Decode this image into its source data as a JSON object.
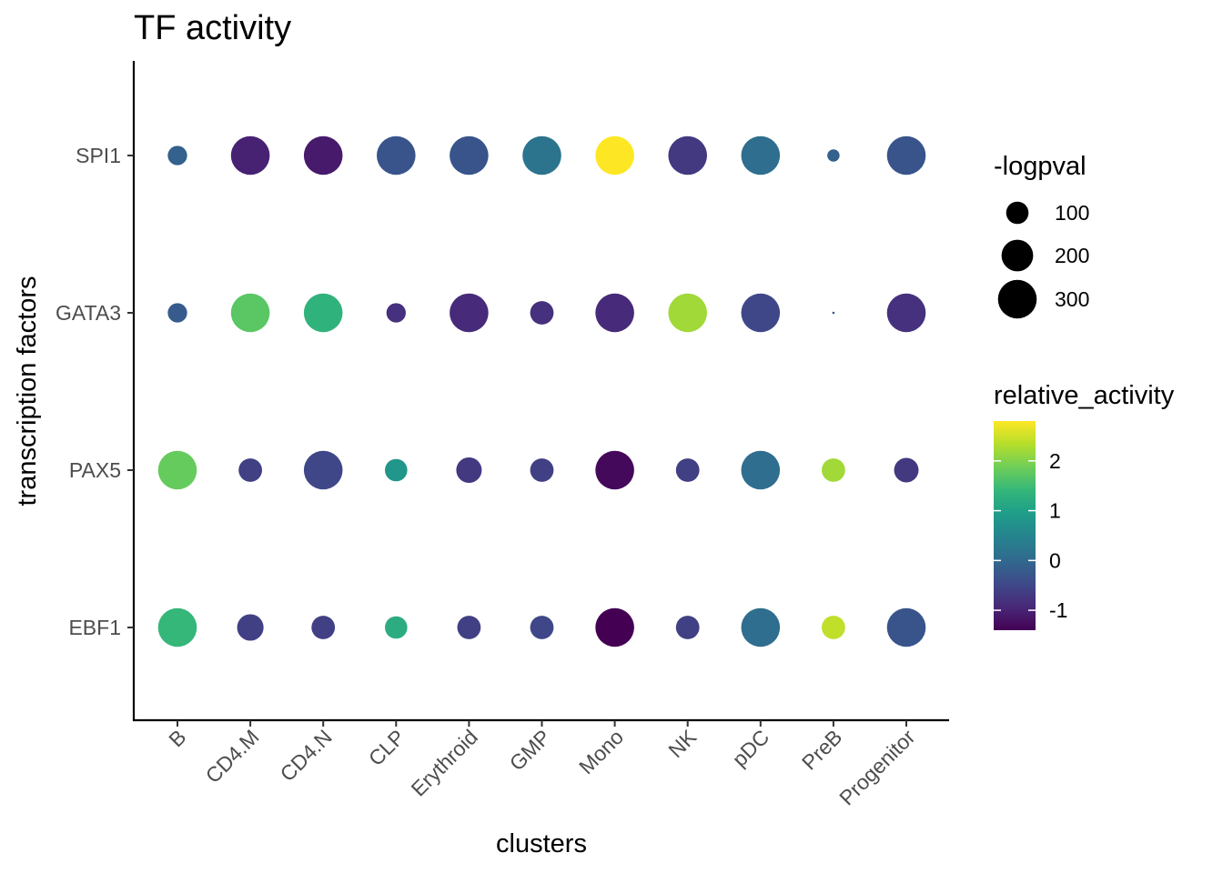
{
  "chart_data": {
    "type": "scatter",
    "title": "TF activity",
    "xlabel": "clusters",
    "ylabel": "transcription factors",
    "categories": [
      "B",
      "CD4.M",
      "CD4.N",
      "CLP",
      "Erythroid",
      "GMP",
      "Mono",
      "NK",
      "pDC",
      "PreB",
      "Progenitor"
    ],
    "factors": [
      "SPI1",
      "GATA3",
      "PAX5",
      "EBF1"
    ],
    "color_encoding": "relative_activity",
    "size_encoding": "-logpval",
    "colorbar_ticks": [
      2,
      1,
      0,
      -1
    ],
    "colorbar_tick_labels": [
      "2",
      "1",
      "0",
      "-1"
    ],
    "color_range": [
      -1.4,
      2.8
    ],
    "size_legend_values": [
      100,
      200,
      300
    ],
    "size_legend_labels": [
      "100",
      "200",
      "300"
    ],
    "grid": false,
    "legend_position": "right",
    "points": [
      {
        "factor": "SPI1",
        "cluster": "B",
        "logpval": 75,
        "relative_activity": -0.1
      },
      {
        "factor": "SPI1",
        "cluster": "CD4.M",
        "logpval": 300,
        "relative_activity": -1.0
      },
      {
        "factor": "SPI1",
        "cluster": "CD4.N",
        "logpval": 300,
        "relative_activity": -1.1
      },
      {
        "factor": "SPI1",
        "cluster": "CLP",
        "logpval": 300,
        "relative_activity": -0.3
      },
      {
        "factor": "SPI1",
        "cluster": "Erythroid",
        "logpval": 300,
        "relative_activity": -0.3
      },
      {
        "factor": "SPI1",
        "cluster": "GMP",
        "logpval": 300,
        "relative_activity": 0.2
      },
      {
        "factor": "SPI1",
        "cluster": "Mono",
        "logpval": 300,
        "relative_activity": 2.8
      },
      {
        "factor": "SPI1",
        "cluster": "NK",
        "logpval": 300,
        "relative_activity": -0.7
      },
      {
        "factor": "SPI1",
        "cluster": "pDC",
        "logpval": 300,
        "relative_activity": 0.1
      },
      {
        "factor": "SPI1",
        "cluster": "PreB",
        "logpval": 30,
        "relative_activity": -0.1
      },
      {
        "factor": "SPI1",
        "cluster": "Progenitor",
        "logpval": 300,
        "relative_activity": -0.3
      },
      {
        "factor": "GATA3",
        "cluster": "B",
        "logpval": 75,
        "relative_activity": -0.2
      },
      {
        "factor": "GATA3",
        "cluster": "CD4.M",
        "logpval": 300,
        "relative_activity": 1.7
      },
      {
        "factor": "GATA3",
        "cluster": "CD4.N",
        "logpval": 300,
        "relative_activity": 1.3
      },
      {
        "factor": "GATA3",
        "cluster": "CLP",
        "logpval": 75,
        "relative_activity": -0.8
      },
      {
        "factor": "GATA3",
        "cluster": "Erythroid",
        "logpval": 300,
        "relative_activity": -0.9
      },
      {
        "factor": "GATA3",
        "cluster": "GMP",
        "logpval": 110,
        "relative_activity": -0.8
      },
      {
        "factor": "GATA3",
        "cluster": "Mono",
        "logpval": 300,
        "relative_activity": -0.9
      },
      {
        "factor": "GATA3",
        "cluster": "NK",
        "logpval": 300,
        "relative_activity": 2.2
      },
      {
        "factor": "GATA3",
        "cluster": "pDC",
        "logpval": 300,
        "relative_activity": -0.5
      },
      {
        "factor": "GATA3",
        "cluster": "PreB",
        "logpval": 1,
        "relative_activity": -0.3
      },
      {
        "factor": "GATA3",
        "cluster": "Progenitor",
        "logpval": 300,
        "relative_activity": -0.8
      },
      {
        "factor": "PAX5",
        "cluster": "B",
        "logpval": 300,
        "relative_activity": 1.8
      },
      {
        "factor": "PAX5",
        "cluster": "CD4.M",
        "logpval": 110,
        "relative_activity": -0.6
      },
      {
        "factor": "PAX5",
        "cluster": "CD4.N",
        "logpval": 300,
        "relative_activity": -0.5
      },
      {
        "factor": "PAX5",
        "cluster": "CLP",
        "logpval": 100,
        "relative_activity": 0.8
      },
      {
        "factor": "PAX5",
        "cluster": "Erythroid",
        "logpval": 130,
        "relative_activity": -0.7
      },
      {
        "factor": "PAX5",
        "cluster": "GMP",
        "logpval": 110,
        "relative_activity": -0.6
      },
      {
        "factor": "PAX5",
        "cluster": "Mono",
        "logpval": 300,
        "relative_activity": -1.3
      },
      {
        "factor": "PAX5",
        "cluster": "NK",
        "logpval": 110,
        "relative_activity": -0.6
      },
      {
        "factor": "PAX5",
        "cluster": "pDC",
        "logpval": 300,
        "relative_activity": 0.1
      },
      {
        "factor": "PAX5",
        "cluster": "PreB",
        "logpval": 110,
        "relative_activity": 2.2
      },
      {
        "factor": "PAX5",
        "cluster": "Progenitor",
        "logpval": 120,
        "relative_activity": -0.7
      },
      {
        "factor": "EBF1",
        "cluster": "B",
        "logpval": 300,
        "relative_activity": 1.4
      },
      {
        "factor": "EBF1",
        "cluster": "CD4.M",
        "logpval": 140,
        "relative_activity": -0.6
      },
      {
        "factor": "EBF1",
        "cluster": "CD4.N",
        "logpval": 110,
        "relative_activity": -0.6
      },
      {
        "factor": "EBF1",
        "cluster": "CLP",
        "logpval": 100,
        "relative_activity": 1.2
      },
      {
        "factor": "EBF1",
        "cluster": "Erythroid",
        "logpval": 110,
        "relative_activity": -0.6
      },
      {
        "factor": "EBF1",
        "cluster": "GMP",
        "logpval": 110,
        "relative_activity": -0.5
      },
      {
        "factor": "EBF1",
        "cluster": "Mono",
        "logpval": 300,
        "relative_activity": -1.4
      },
      {
        "factor": "EBF1",
        "cluster": "NK",
        "logpval": 110,
        "relative_activity": -0.6
      },
      {
        "factor": "EBF1",
        "cluster": "pDC",
        "logpval": 300,
        "relative_activity": 0.1
      },
      {
        "factor": "EBF1",
        "cluster": "PreB",
        "logpval": 110,
        "relative_activity": 2.4
      },
      {
        "factor": "EBF1",
        "cluster": "Progenitor",
        "logpval": 300,
        "relative_activity": -0.3
      }
    ]
  }
}
